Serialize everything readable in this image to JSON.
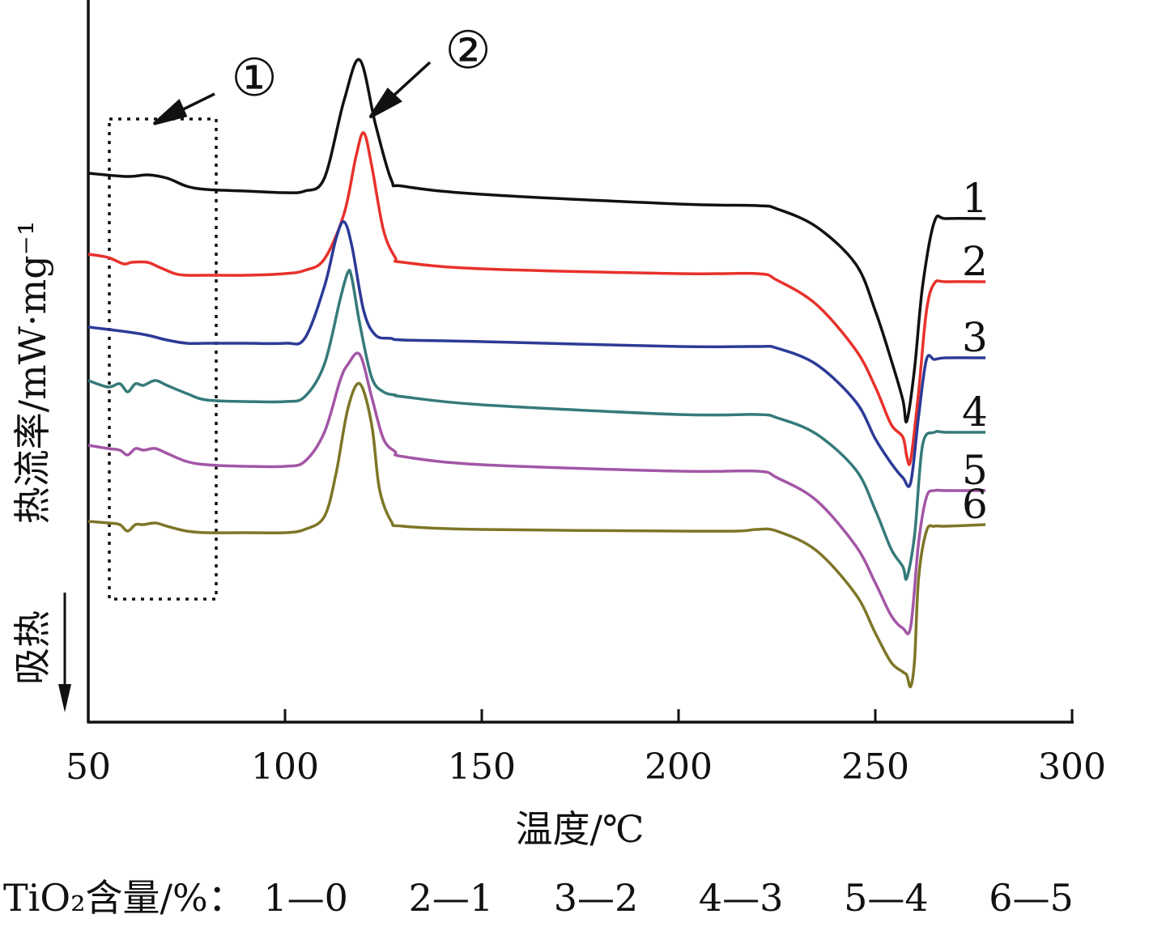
{
  "chart_data": {
    "type": "line",
    "xlabel": "温度/℃",
    "ylabel": "热流率/mW·mg⁻¹",
    "endo_label": "吸热",
    "xlim": [
      50,
      300
    ],
    "xticks": [
      50,
      100,
      150,
      200,
      250,
      300
    ],
    "grid": false,
    "y_values_shown": false,
    "legend_prefix": "TiO₂含量/%：",
    "legend": [
      "1—0",
      "2—1",
      "3—2",
      "4—3",
      "5—4",
      "6—5"
    ],
    "annotations": [
      {
        "label": "①",
        "note": "dashed box 55–82 ℃"
      },
      {
        "label": "②",
        "note": "arrow to crystallization peak"
      }
    ],
    "series": [
      {
        "name": "1",
        "color": "#111111",
        "offset": 0.0,
        "x": [
          50,
          60,
          65,
          70,
          75,
          80,
          90,
          100,
          105,
          110,
          115,
          119,
          123,
          127,
          130,
          150,
          200,
          220,
          225,
          235,
          245,
          250,
          254,
          257,
          258,
          260,
          262,
          265,
          268,
          278
        ],
        "y": [
          0,
          -0.2,
          -0.1,
          -0.3,
          -0.8,
          -1.0,
          -1.1,
          -1.2,
          -1.1,
          -0.3,
          4.5,
          7.0,
          3.0,
          -0.4,
          -0.8,
          -1.3,
          -1.9,
          -2.0,
          -2.2,
          -3.3,
          -5.6,
          -8.5,
          -11.5,
          -14.0,
          -15.3,
          -12.0,
          -7.0,
          -3.0,
          -2.8,
          -2.8
        ]
      },
      {
        "name": "2",
        "color": "#e8312c",
        "offset": -5.0,
        "x": [
          50,
          55,
          59,
          61,
          65,
          68,
          72,
          75,
          80,
          90,
          100,
          105,
          110,
          115,
          118,
          120,
          122,
          125,
          128,
          130,
          150,
          200,
          220,
          225,
          235,
          245,
          250,
          254,
          257,
          258,
          259,
          261,
          263,
          265,
          268,
          278
        ],
        "y": [
          0,
          -0.2,
          -0.6,
          -0.5,
          -0.5,
          -0.8,
          -1.2,
          -1.3,
          -1.3,
          -1.3,
          -1.2,
          -1.0,
          -0.3,
          2.5,
          6.0,
          7.5,
          5.5,
          1.5,
          -0.2,
          -0.5,
          -0.9,
          -1.2,
          -1.2,
          -1.6,
          -3.1,
          -5.9,
          -8.2,
          -10.5,
          -11.3,
          -12.5,
          -12.7,
          -8.5,
          -3.5,
          -1.8,
          -1.7,
          -1.7
        ]
      },
      {
        "name": "3",
        "color": "#2c3a97",
        "offset": -9.5,
        "x": [
          50,
          60,
          65,
          70,
          75,
          80,
          90,
          100,
          105,
          110,
          113,
          115,
          117,
          120,
          123,
          127,
          130,
          150,
          200,
          220,
          225,
          235,
          245,
          250,
          254,
          257,
          259,
          261,
          263,
          265,
          268,
          278
        ],
        "y": [
          0,
          -0.3,
          -0.5,
          -0.8,
          -1.0,
          -1.0,
          -1.0,
          -1.0,
          -0.7,
          2.5,
          5.5,
          6.5,
          5.0,
          1.0,
          -0.5,
          -0.7,
          -0.8,
          -0.9,
          -1.2,
          -1.2,
          -1.3,
          -2.3,
          -4.6,
          -6.9,
          -8.4,
          -9.3,
          -9.6,
          -5.5,
          -2.0,
          -2.0,
          -1.9,
          -1.9
        ]
      },
      {
        "name": "4",
        "color": "#367a7a",
        "offset": -12.8,
        "x": [
          50,
          55,
          58,
          60,
          62,
          64,
          67,
          70,
          75,
          80,
          90,
          100,
          105,
          110,
          114,
          116,
          117,
          119,
          122,
          125,
          128,
          130,
          150,
          200,
          220,
          225,
          235,
          245,
          250,
          254,
          257,
          258,
          260,
          262,
          265,
          268,
          278
        ],
        "y": [
          0,
          -0.4,
          -0.2,
          -0.7,
          -0.2,
          -0.3,
          0.0,
          -0.3,
          -0.8,
          -1.2,
          -1.3,
          -1.3,
          -1.0,
          1.0,
          5.0,
          6.7,
          6.3,
          3.5,
          0.2,
          -0.7,
          -0.9,
          -1.0,
          -1.5,
          -2.1,
          -2.1,
          -2.3,
          -3.3,
          -5.5,
          -8.0,
          -10.4,
          -11.5,
          -12.2,
          -9.5,
          -4.0,
          -3.2,
          -3.2,
          -3.2
        ]
      },
      {
        "name": "5",
        "color": "#a356a6",
        "offset": -16.8,
        "x": [
          50,
          55,
          58,
          60,
          62,
          64,
          67,
          70,
          75,
          80,
          90,
          100,
          105,
          110,
          114,
          116,
          119,
          122,
          125,
          128,
          130,
          150,
          200,
          220,
          225,
          235,
          245,
          250,
          254,
          257,
          259,
          261,
          263,
          265,
          268,
          278
        ],
        "y": [
          0,
          -0.2,
          -0.3,
          -0.6,
          -0.2,
          -0.3,
          -0.2,
          -0.5,
          -1.0,
          -1.2,
          -1.3,
          -1.3,
          -1.0,
          0.8,
          4.0,
          5.0,
          5.6,
          3.0,
          0.4,
          -0.4,
          -0.7,
          -1.2,
          -1.6,
          -1.6,
          -2.0,
          -3.4,
          -6.2,
          -8.5,
          -10.5,
          -11.3,
          -11.2,
          -6.0,
          -3.2,
          -2.8,
          -2.8,
          -2.8
        ]
      },
      {
        "name": "6",
        "color": "#7d7628",
        "offset": -21.5,
        "x": [
          50,
          55,
          58,
          60,
          62,
          64,
          67,
          70,
          75,
          80,
          90,
          100,
          105,
          110,
          113,
          116,
          119,
          122,
          124,
          127,
          130,
          150,
          200,
          215,
          220,
          225,
          235,
          245,
          250,
          254,
          257,
          258,
          259,
          260,
          261,
          263,
          265,
          268,
          278
        ],
        "y": [
          0,
          -0.1,
          -0.2,
          -0.6,
          -0.2,
          -0.2,
          -0.1,
          -0.3,
          -0.6,
          -0.7,
          -0.7,
          -0.7,
          -0.5,
          0.3,
          3.0,
          7.0,
          8.5,
          6.0,
          2.0,
          0.0,
          -0.3,
          -0.5,
          -0.6,
          -0.6,
          -0.5,
          -0.6,
          -1.8,
          -4.5,
          -6.9,
          -8.7,
          -9.3,
          -9.5,
          -10.2,
          -8.5,
          -3.5,
          -0.6,
          -0.3,
          -0.3,
          -0.2
        ]
      }
    ]
  }
}
